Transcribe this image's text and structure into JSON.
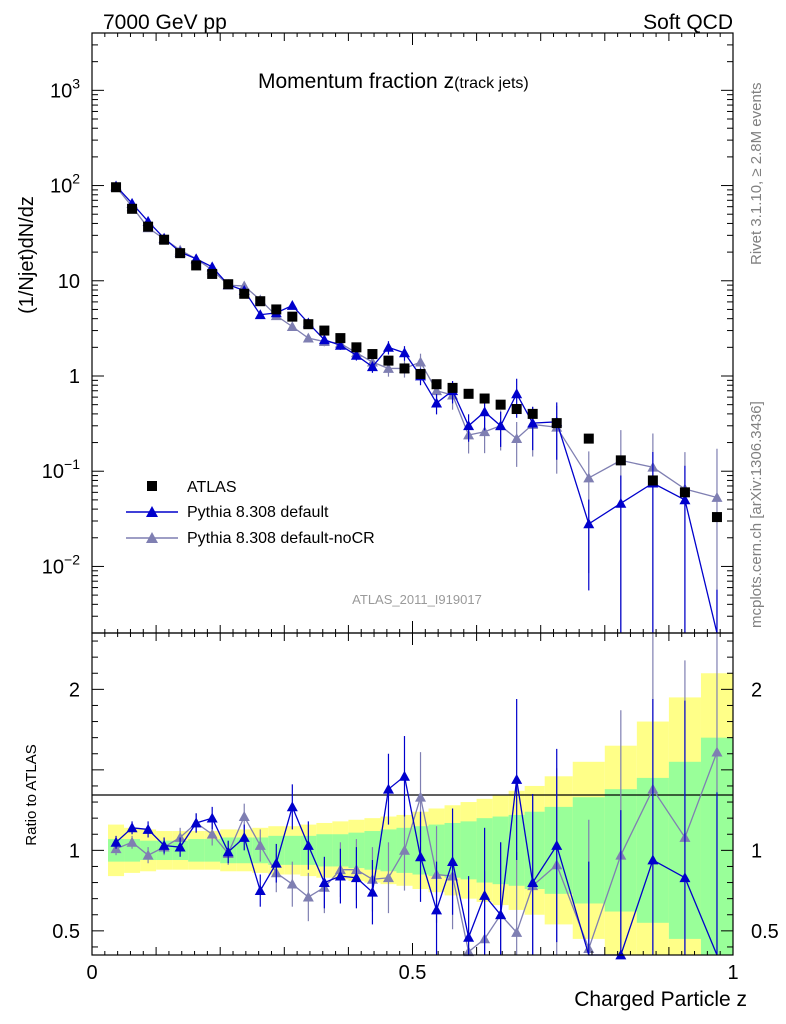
{
  "header": {
    "energy": "7000 GeV pp",
    "category": "Soft QCD"
  },
  "side": {
    "rivet": "Rivet 3.1.10, ≥ 2.8M events",
    "source": "mcplots.cern.ch [arXiv:1306.3436]"
  },
  "colors": {
    "atlas": "#000000",
    "default": "#0000cc",
    "nocr": "#7f7fb2",
    "band_inner": "#99ff99",
    "band_outer": "#ffff88"
  },
  "chart_data": [
    {
      "type": "scatter",
      "title_main": "Momentum fraction ",
      "title_var": "z",
      "title_sub": "(track jets)",
      "ylabel": "(1/Njet)dN/dz",
      "yscale": "log",
      "ylim": [
        0.002,
        4000
      ],
      "xlim": [
        0,
        1
      ],
      "ref_label": "ATLAS_2011_I919017",
      "yticks": [
        {
          "v": 0.01,
          "base": "10",
          "exp": "−2"
        },
        {
          "v": 0.1,
          "base": "10",
          "exp": "−1"
        },
        {
          "v": 1,
          "base": "1",
          "exp": ""
        },
        {
          "v": 10,
          "base": "10",
          "exp": ""
        },
        {
          "v": 100,
          "base": "10",
          "exp": "2"
        },
        {
          "v": 1000,
          "base": "10",
          "exp": "3"
        }
      ],
      "legend": [
        "ATLAS",
        "Pythia 8.308 default",
        "Pythia 8.308 default-noCR"
      ],
      "x": [
        0.0375,
        0.0625,
        0.0875,
        0.1125,
        0.1375,
        0.1625,
        0.1875,
        0.2125,
        0.2375,
        0.2625,
        0.2875,
        0.3125,
        0.3375,
        0.3625,
        0.3875,
        0.4125,
        0.4375,
        0.4625,
        0.4875,
        0.5125,
        0.5375,
        0.5625,
        0.5875,
        0.6125,
        0.6375,
        0.6625,
        0.6875,
        0.725,
        0.775,
        0.825,
        0.875,
        0.925,
        0.975
      ],
      "series": [
        {
          "name": "ATLAS",
          "values": [
            96,
            57,
            37,
            27,
            19.5,
            14.5,
            11.8,
            9.2,
            7.3,
            6.1,
            5.0,
            4.2,
            3.5,
            3.0,
            2.5,
            2.0,
            1.7,
            1.45,
            1.2,
            1.05,
            0.82,
            0.75,
            0.65,
            0.58,
            0.5,
            0.45,
            0.4,
            0.32,
            0.22,
            0.13,
            0.08,
            0.06,
            0.033
          ]
        },
        {
          "name": "Pythia 8.308 default",
          "values": [
            99,
            65,
            42,
            28,
            20,
            17,
            14,
            9.1,
            7.9,
            4.4,
            4.6,
            5.5,
            3.6,
            2.4,
            2.1,
            1.65,
            1.25,
            2.0,
            1.75,
            1.0,
            0.52,
            0.7,
            0.3,
            0.42,
            0.3,
            0.65,
            0.32,
            0.33,
            0.028,
            0.046,
            0.075,
            0.05,
            0.0019
          ]
        },
        {
          "name": "Pythia 8.308 default-noCR",
          "values": [
            97,
            60,
            36,
            27.5,
            21,
            17,
            13,
            9.0,
            8.8,
            6.3,
            4.3,
            3.3,
            2.5,
            2.3,
            2.2,
            1.75,
            1.4,
            1.2,
            1.2,
            1.4,
            0.7,
            0.63,
            0.24,
            0.26,
            0.3,
            0.22,
            0.31,
            0.29,
            0.085,
            0.13,
            0.11,
            0.065,
            0.053
          ]
        }
      ]
    },
    {
      "type": "line",
      "ylabel": "Ratio to ATLAS",
      "xlabel": "Charged Particle z",
      "ylim": [
        0.35,
        2.35
      ],
      "xlim": [
        0,
        1
      ],
      "yticks": [
        "0.5",
        "1",
        "2"
      ],
      "xticks": [
        "0",
        "0.5",
        "1"
      ],
      "band_inner": [
        0.07,
        0.07,
        0.06,
        0.06,
        0.06,
        0.07,
        0.07,
        0.08,
        0.08,
        0.08,
        0.09,
        0.09,
        0.09,
        0.1,
        0.1,
        0.11,
        0.12,
        0.13,
        0.14,
        0.15,
        0.16,
        0.17,
        0.18,
        0.2,
        0.21,
        0.22,
        0.24,
        0.27,
        0.33,
        0.38,
        0.45,
        0.55,
        0.7
      ],
      "band_outer": [
        0.16,
        0.14,
        0.13,
        0.12,
        0.12,
        0.12,
        0.12,
        0.13,
        0.13,
        0.14,
        0.15,
        0.15,
        0.16,
        0.17,
        0.18,
        0.19,
        0.2,
        0.21,
        0.22,
        0.24,
        0.26,
        0.28,
        0.3,
        0.32,
        0.34,
        0.37,
        0.4,
        0.46,
        0.55,
        0.65,
        0.8,
        0.95,
        1.1
      ],
      "series": [
        {
          "name": "Pythia 8.308 default",
          "values": [
            1.05,
            1.14,
            1.13,
            1.03,
            1.02,
            1.17,
            1.2,
            0.99,
            1.08,
            0.75,
            0.92,
            1.27,
            1.03,
            0.8,
            0.84,
            0.83,
            0.74,
            1.38,
            1.46,
            0.96,
            0.63,
            0.93,
            0.46,
            0.72,
            0.6,
            1.44,
            0.8,
            1.03,
            0.13,
            0.35,
            0.94,
            0.83,
            0.06
          ]
        },
        {
          "name": "Pythia 8.308 default-noCR",
          "values": [
            1.01,
            1.05,
            0.97,
            1.02,
            1.08,
            1.17,
            1.1,
            0.98,
            1.21,
            1.03,
            0.86,
            0.79,
            0.71,
            0.77,
            0.88,
            0.88,
            0.82,
            0.83,
            1.0,
            1.33,
            0.85,
            0.84,
            0.37,
            0.45,
            0.6,
            0.49,
            0.78,
            0.91,
            0.39,
            0.97,
            1.38,
            1.08,
            1.61
          ]
        }
      ]
    }
  ]
}
